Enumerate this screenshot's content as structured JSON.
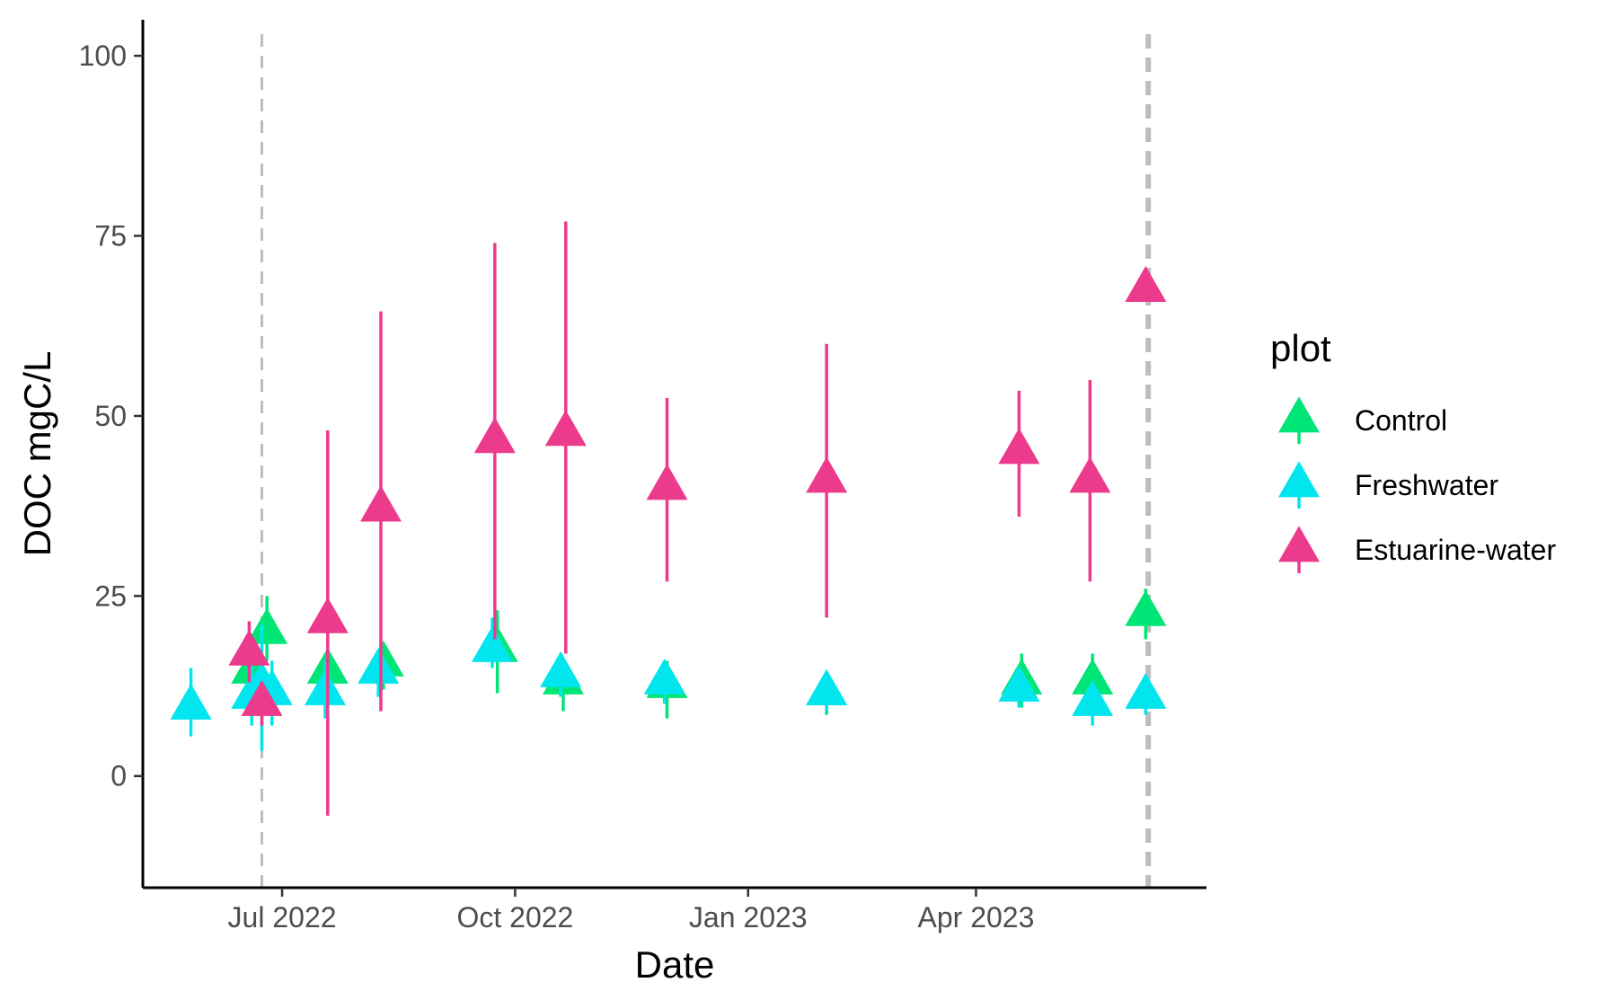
{
  "chart_data": {
    "type": "scatter",
    "xlabel": "Date",
    "ylabel": "DOC mgC/L",
    "xlim": [
      "2022-05-07",
      "2023-07-01"
    ],
    "ylim": [
      -15.5,
      105
    ],
    "x_ticks": [
      {
        "date": "2022-07-01",
        "label": "Jul 2022"
      },
      {
        "date": "2022-10-01",
        "label": "Oct 2022"
      },
      {
        "date": "2023-01-01",
        "label": "Jan 2023"
      },
      {
        "date": "2023-04-01",
        "label": "Apr 2023"
      }
    ],
    "y_ticks": [
      0,
      25,
      50,
      75,
      100
    ],
    "vlines": [
      {
        "date": "2022-06-23",
        "style": "dashed",
        "weight": "thin"
      },
      {
        "date": "2023-06-08",
        "style": "dashed",
        "weight": "thick"
      }
    ],
    "grid": false,
    "legend": {
      "title": "plot",
      "position": "right",
      "entries": [
        {
          "name": "Control",
          "color": "#00E676"
        },
        {
          "name": "Freshwater",
          "color": "#00E5EE"
        },
        {
          "name": "Estuarine-water",
          "color": "#EC3A8C"
        }
      ]
    },
    "marker": "triangle",
    "series": [
      {
        "name": "Control",
        "color": "#00E676",
        "points": [
          {
            "date": "2022-06-19",
            "y": 14.5,
            "lo": 10.5,
            "hi": 19
          },
          {
            "date": "2022-06-25",
            "y": 20,
            "lo": 16,
            "hi": 25
          },
          {
            "date": "2022-07-19",
            "y": 14.5,
            "lo": 10,
            "hi": 18
          },
          {
            "date": "2022-08-10",
            "y": 15.5,
            "lo": 12,
            "hi": 18
          },
          {
            "date": "2022-09-24",
            "y": 17.5,
            "lo": 11.5,
            "hi": 23
          },
          {
            "date": "2022-10-20",
            "y": 13,
            "lo": 9,
            "hi": 16
          },
          {
            "date": "2022-11-30",
            "y": 12.5,
            "lo": 8,
            "hi": 16
          },
          {
            "date": "2023-02-01",
            "y": 11.5,
            "lo": 8.5,
            "hi": 14
          },
          {
            "date": "2023-04-19",
            "y": 13,
            "lo": 9.5,
            "hi": 17
          },
          {
            "date": "2023-05-17",
            "y": 13,
            "lo": 9,
            "hi": 17
          },
          {
            "date": "2023-06-07",
            "y": 22.5,
            "lo": 19,
            "hi": 26
          }
        ]
      },
      {
        "name": "Freshwater",
        "color": "#00E5EE",
        "points": [
          {
            "date": "2022-05-26",
            "y": 9.5,
            "lo": 5.5,
            "hi": 15
          },
          {
            "date": "2022-06-19",
            "y": 11,
            "lo": 7,
            "hi": 16
          },
          {
            "date": "2022-06-23",
            "y": 12.5,
            "lo": 3.5,
            "hi": 21
          },
          {
            "date": "2022-06-27",
            "y": 11.5,
            "lo": 7,
            "hi": 16
          },
          {
            "date": "2022-07-18",
            "y": 11.5,
            "lo": 8,
            "hi": 16
          },
          {
            "date": "2022-08-08",
            "y": 14.5,
            "lo": 11,
            "hi": 17
          },
          {
            "date": "2022-09-22",
            "y": 17.5,
            "lo": 15,
            "hi": 22
          },
          {
            "date": "2022-10-19",
            "y": 14,
            "lo": 11,
            "hi": 17
          },
          {
            "date": "2022-11-29",
            "y": 13,
            "lo": 10,
            "hi": 16
          },
          {
            "date": "2023-02-01",
            "y": 11.5,
            "lo": 9,
            "hi": 14
          },
          {
            "date": "2023-04-18",
            "y": 12,
            "lo": 9.5,
            "hi": 15
          },
          {
            "date": "2023-05-17",
            "y": 10,
            "lo": 7,
            "hi": 13
          },
          {
            "date": "2023-06-07",
            "y": 11,
            "lo": 8.5,
            "hi": 13.5
          }
        ]
      },
      {
        "name": "Estuarine-water",
        "color": "#EC3A8C",
        "points": [
          {
            "date": "2022-06-18",
            "y": 17,
            "lo": 13,
            "hi": 21.5
          },
          {
            "date": "2022-06-23",
            "y": 10,
            "lo": 7,
            "hi": 13
          },
          {
            "date": "2022-07-19",
            "y": 21.5,
            "lo": -5.5,
            "hi": 48
          },
          {
            "date": "2022-08-09",
            "y": 37,
            "lo": 9,
            "hi": 64.5
          },
          {
            "date": "2022-09-23",
            "y": 46.5,
            "lo": 19,
            "hi": 74
          },
          {
            "date": "2022-10-21",
            "y": 47.5,
            "lo": 17,
            "hi": 77
          },
          {
            "date": "2022-11-30",
            "y": 40,
            "lo": 27,
            "hi": 52.5
          },
          {
            "date": "2023-02-01",
            "y": 41,
            "lo": 22,
            "hi": 60
          },
          {
            "date": "2023-04-18",
            "y": 45,
            "lo": 36,
            "hi": 53.5
          },
          {
            "date": "2023-05-16",
            "y": 41,
            "lo": 27,
            "hi": 55
          },
          {
            "date": "2023-06-07",
            "y": 67.5,
            "lo": 67,
            "hi": 68
          }
        ]
      }
    ]
  }
}
